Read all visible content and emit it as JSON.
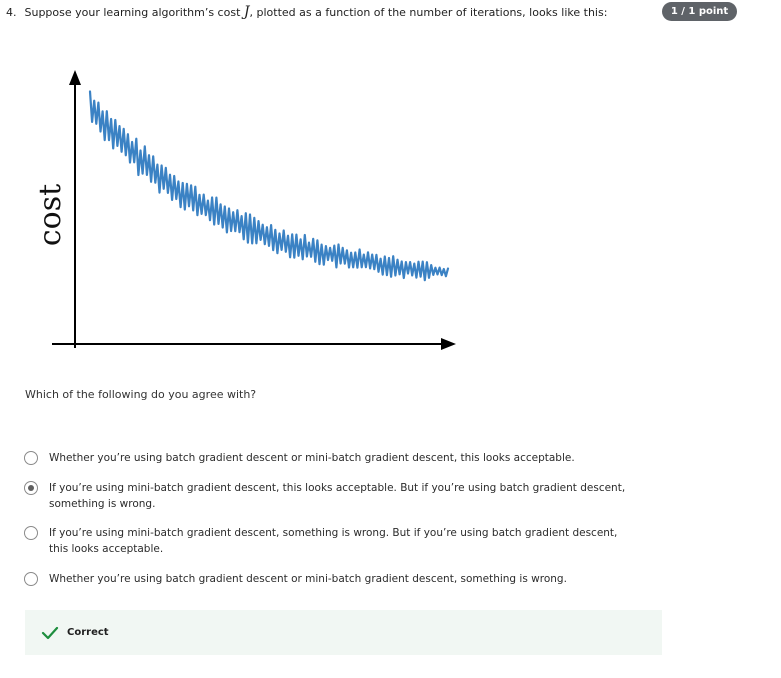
{
  "question": {
    "number": "4.",
    "text_before": "Suppose your learning algorithm’s cost",
    "math_symbol": "J",
    "text_after": ", plotted as a function of the number of iterations, looks like this:"
  },
  "score": "1 / 1 point",
  "figure": {
    "ylabel": "cost",
    "line_color": "#3b82c4",
    "axis_color": "#000000"
  },
  "prompt": "Which of the following do you agree with?",
  "options": [
    {
      "label": "Whether you’re using batch gradient descent or mini-batch gradient descent, this looks acceptable.",
      "selected": false
    },
    {
      "label": "If you’re using mini-batch gradient descent, this looks acceptable. But if you’re using batch gradient descent, something is wrong.",
      "selected": true
    },
    {
      "label": "If you’re using mini-batch gradient descent, something is wrong. But if you’re using batch gradient descent, this looks acceptable.",
      "selected": false
    },
    {
      "label": "Whether you’re using batch gradient descent or mini-batch gradient descent, something is wrong.",
      "selected": false
    }
  ],
  "feedback": {
    "icon": "check-icon",
    "label": "Correct",
    "color": "#1e8e3e"
  }
}
